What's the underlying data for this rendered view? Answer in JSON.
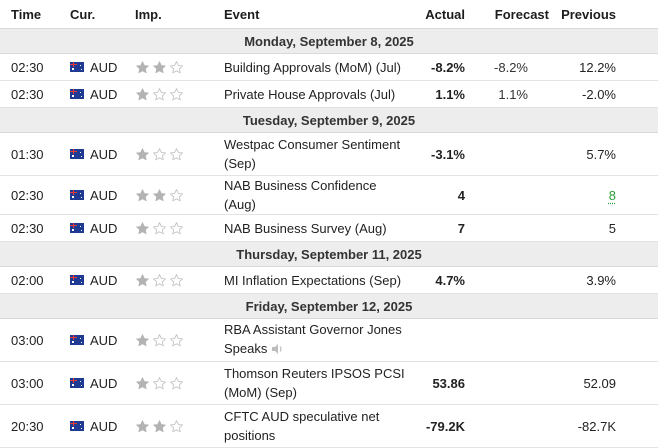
{
  "headers": {
    "time": "Time",
    "currency": "Cur.",
    "importance": "Imp.",
    "event": "Event",
    "actual": "Actual",
    "forecast": "Forecast",
    "previous": "Previous"
  },
  "colors": {
    "date_row_bg": "#ededed",
    "star_filled": "#b3b3b3",
    "previous_better": "#2e9e3c"
  },
  "days": [
    {
      "date": "Monday, September 8, 2025",
      "events": [
        {
          "time": "02:30",
          "currency": "AUD",
          "importance": 2,
          "event": "Building Approvals (MoM) (Jul)",
          "actual": "-8.2%",
          "forecast": "-8.2%",
          "previous": "12.2%"
        },
        {
          "time": "02:30",
          "currency": "AUD",
          "importance": 1,
          "event": "Private House Approvals (Jul)",
          "actual": "1.1%",
          "forecast": "1.1%",
          "previous": "-2.0%"
        }
      ]
    },
    {
      "date": "Tuesday, September 9, 2025",
      "events": [
        {
          "time": "01:30",
          "currency": "AUD",
          "importance": 1,
          "event": "Westpac Consumer Sentiment (Sep)",
          "actual": "-3.1%",
          "forecast": "",
          "previous": "5.7%",
          "tall": true
        },
        {
          "time": "02:30",
          "currency": "AUD",
          "importance": 2,
          "event": "NAB Business Confidence (Aug)",
          "actual": "4",
          "forecast": "",
          "previous": "8",
          "previous_colored": true
        },
        {
          "time": "02:30",
          "currency": "AUD",
          "importance": 1,
          "event": "NAB Business Survey (Aug)",
          "actual": "7",
          "forecast": "",
          "previous": "5"
        }
      ]
    },
    {
      "date": "Thursday, September 11, 2025",
      "events": [
        {
          "time": "02:00",
          "currency": "AUD",
          "importance": 1,
          "event": "MI Inflation Expectations (Sep)",
          "actual": "4.7%",
          "forecast": "",
          "previous": "3.9%"
        }
      ]
    },
    {
      "date": "Friday, September 12, 2025",
      "events": [
        {
          "time": "03:00",
          "currency": "AUD",
          "importance": 1,
          "event": "RBA Assistant Governor Jones Speaks",
          "actual": "",
          "forecast": "",
          "previous": "",
          "tall": true,
          "speaker_icon": "speaker-icon"
        },
        {
          "time": "03:00",
          "currency": "AUD",
          "importance": 1,
          "event": "Thomson Reuters IPSOS PCSI (MoM) (Sep)",
          "actual": "53.86",
          "forecast": "",
          "previous": "52.09",
          "tall": true
        },
        {
          "time": "20:30",
          "currency": "AUD",
          "importance": 2,
          "event": "CFTC AUD speculative net positions",
          "actual": "-79.2K",
          "forecast": "",
          "previous": "-82.7K",
          "tall": true
        }
      ]
    }
  ]
}
